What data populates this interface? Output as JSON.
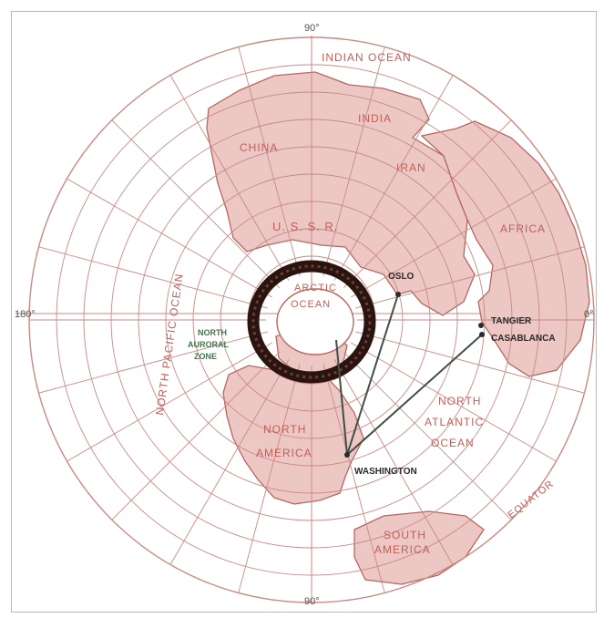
{
  "map": {
    "degree_labels": {
      "top": "90°",
      "bottom": "90°",
      "left": "180°",
      "right": "0°"
    },
    "oceans": {
      "indian": "INDIAN OCEAN",
      "north_pacific": "NORTH PACIFIC OCEAN",
      "arctic_line1": "ARCTIC",
      "arctic_line2": "OCEAN",
      "north_atlantic_line1": "NORTH",
      "north_atlantic_line2": "ATLANTIC",
      "north_atlantic_line3": "OCEAN"
    },
    "regions": {
      "china": "CHINA",
      "india": "INDIA",
      "iran": "IRAN",
      "ussr": "U. S. S. R.",
      "africa": "AFRICA",
      "north_america_line1": "NORTH",
      "north_america_line2": "AMERICA",
      "south_america_line1": "SOUTH",
      "south_america_line2": "AMERICA"
    },
    "cities": {
      "oslo": "OSLO",
      "tangier": "TANGIER",
      "casablanca": "CASABLANCA",
      "washington": "WASHINGTON"
    },
    "zones": {
      "aurora_line1": "NORTH",
      "aurora_line2": "AURORAL",
      "aurora_line3": "ZONE"
    },
    "equator": "EQUATOR",
    "colors": {
      "land": "#ecc7c4",
      "coast": "#b76660",
      "grid": "#c98a84",
      "route": "#3f4f45",
      "aurora": "#2a1410"
    }
  }
}
